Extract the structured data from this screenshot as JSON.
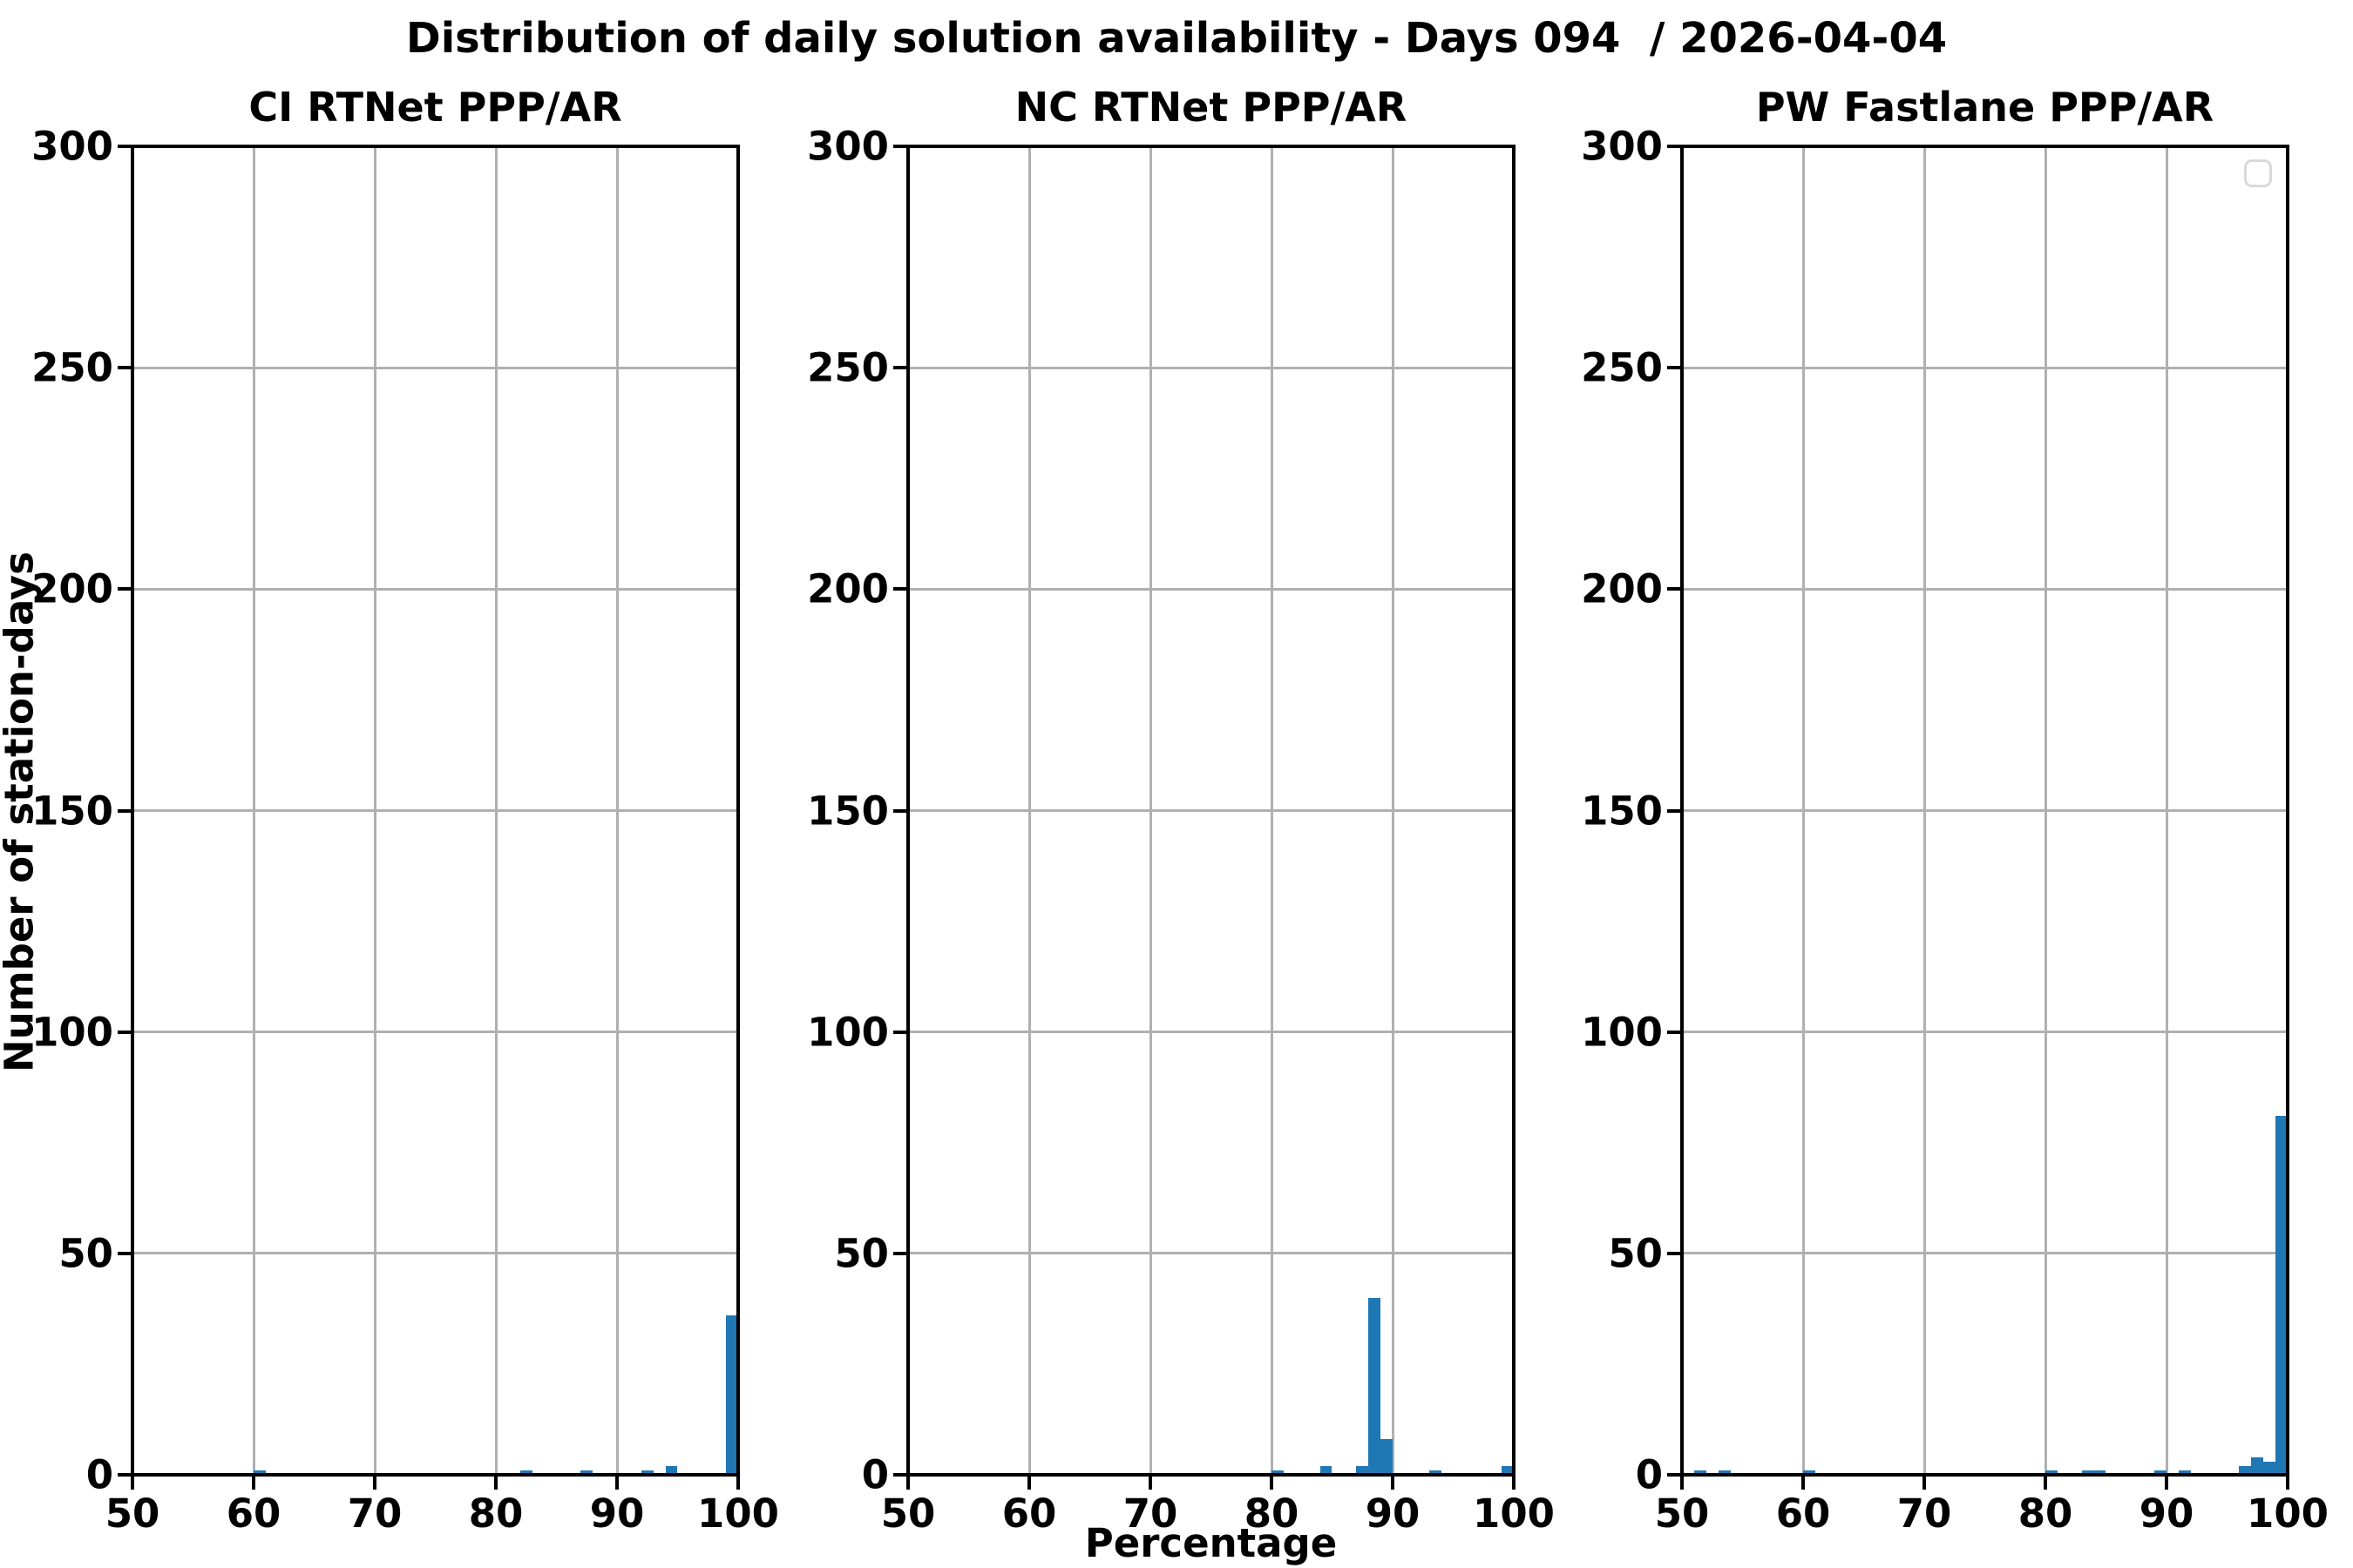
{
  "figure": {
    "title": "Distribution of daily solution availability - Days 094  / 2026-04-04",
    "ylabel": "Number of station-days",
    "xlabel": "Percentage",
    "background_color": "#ffffff",
    "text_color": "#000000",
    "grid_color": "#b0b0b0",
    "bar_color": "#1f77b4",
    "legend_border_color": "#d9d9d9"
  },
  "chart_data": [
    {
      "type": "bar",
      "title": "CI RTNet PPP/AR",
      "xlabel": "Percentage",
      "ylabel": "Number of station-days",
      "xlim": [
        50,
        100
      ],
      "ylim": [
        0,
        300
      ],
      "xticks": [
        50,
        60,
        70,
        80,
        90,
        100
      ],
      "yticks": [
        0,
        50,
        100,
        150,
        200,
        250,
        300
      ],
      "grid": true,
      "legend": {
        "visible": false,
        "entries": []
      },
      "bin_width": 1,
      "bins": [
        {
          "x": 60,
          "count": 1
        },
        {
          "x": 82,
          "count": 1
        },
        {
          "x": 87,
          "count": 1
        },
        {
          "x": 92,
          "count": 1
        },
        {
          "x": 94,
          "count": 2
        },
        {
          "x": 99,
          "count": 36
        }
      ]
    },
    {
      "type": "bar",
      "title": "NC RTNet PPP/AR",
      "xlabel": "Percentage",
      "ylabel": "Number of station-days",
      "xlim": [
        50,
        100
      ],
      "ylim": [
        0,
        300
      ],
      "xticks": [
        50,
        60,
        70,
        80,
        90,
        100
      ],
      "yticks": [
        0,
        50,
        100,
        150,
        200,
        250,
        300
      ],
      "grid": true,
      "legend": {
        "visible": false,
        "entries": []
      },
      "bin_width": 1,
      "bins": [
        {
          "x": 80,
          "count": 1
        },
        {
          "x": 84,
          "count": 2
        },
        {
          "x": 87,
          "count": 2
        },
        {
          "x": 88,
          "count": 40
        },
        {
          "x": 89,
          "count": 8
        },
        {
          "x": 93,
          "count": 1
        },
        {
          "x": 99,
          "count": 2
        }
      ]
    },
    {
      "type": "bar",
      "title": "PW Fastlane PPP/AR",
      "xlabel": "Percentage",
      "ylabel": "Number of station-days",
      "xlim": [
        50,
        100
      ],
      "ylim": [
        0,
        300
      ],
      "xticks": [
        50,
        60,
        70,
        80,
        90,
        100
      ],
      "yticks": [
        0,
        50,
        100,
        150,
        200,
        250,
        300
      ],
      "grid": true,
      "legend": {
        "visible": true,
        "entries": []
      },
      "bin_width": 1,
      "bins": [
        {
          "x": 51,
          "count": 1
        },
        {
          "x": 53,
          "count": 1
        },
        {
          "x": 60,
          "count": 1
        },
        {
          "x": 80,
          "count": 1
        },
        {
          "x": 83,
          "count": 1
        },
        {
          "x": 84,
          "count": 1
        },
        {
          "x": 89,
          "count": 1
        },
        {
          "x": 91,
          "count": 1
        },
        {
          "x": 96,
          "count": 2
        },
        {
          "x": 97,
          "count": 4
        },
        {
          "x": 98,
          "count": 3
        },
        {
          "x": 99,
          "count": 81
        }
      ]
    }
  ]
}
